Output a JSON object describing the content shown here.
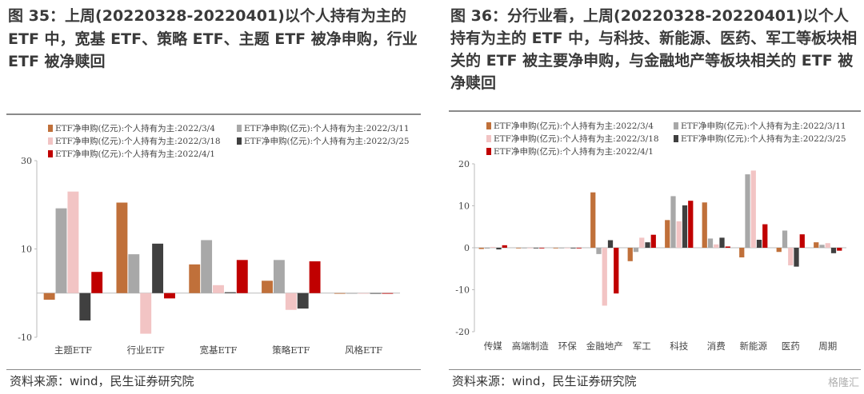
{
  "left": {
    "title": "图 35：上周(20220328-20220401)以个人持有为主的 ETF 中，宽基 ETF、策略 ETF、主题 ETF 被净申购，行业 ETF 被净赎回",
    "source": "资料来源：wind，民生证券研究院"
  },
  "right": {
    "title": "图 36：分行业看，上周(20220328-20220401)以个人持有为主的 ETF 中，与科技、新能源、医药、军工等板块相关的 ETF 被主要净申购，与金融地产等板块相关的 ETF 被净赎回",
    "source": "资料来源：wind，民生证券研究院"
  },
  "watermark": "格隆汇",
  "colors": {
    "2022/3/4": "#c0703a",
    "2022/3/11": "#a8a8a8",
    "2022/3/18": "#f2c4c4",
    "2022/3/25": "#404040",
    "2022/4/1": "#c00000"
  },
  "chart_data": [
    {
      "type": "bar",
      "categories": [
        "主题ETF",
        "行业ETF",
        "宽基ETF",
        "策略ETF",
        "风格ETF"
      ],
      "series": [
        {
          "name": "ETF净申购(亿元):个人持有为主:2022/3/4",
          "values": [
            -1.5,
            20.5,
            6.5,
            2.8,
            0.0
          ]
        },
        {
          "name": "ETF净申购(亿元):个人持有为主:2022/3/11",
          "values": [
            19.2,
            8.8,
            12.0,
            7.5,
            0.0
          ]
        },
        {
          "name": "ETF净申购(亿元):个人持有为主:2022/3/18",
          "values": [
            23.0,
            -9.2,
            1.8,
            -3.8,
            0.0
          ]
        },
        {
          "name": "ETF净申购(亿元):个人持有为主:2022/3/25",
          "values": [
            -6.2,
            11.2,
            0.2,
            -3.5,
            0.0
          ]
        },
        {
          "name": "ETF净申购(亿元):个人持有为主:2022/4/1",
          "values": [
            4.8,
            -1.2,
            7.5,
            7.2,
            0.0
          ]
        }
      ],
      "ylim": [
        -10,
        30
      ],
      "yticks": [
        -10,
        10,
        30
      ],
      "legend": "top"
    },
    {
      "type": "bar",
      "categories": [
        "传媒",
        "高端制造",
        "环保",
        "金融地产",
        "军工",
        "科技",
        "消费",
        "新能源",
        "医药",
        "周期"
      ],
      "series": [
        {
          "name": "ETF净申购(亿元):个人持有为主:2022/3/4",
          "values": [
            -0.3,
            -0.1,
            0.0,
            13.2,
            -3.2,
            6.6,
            10.8,
            -2.3,
            -1.0,
            1.3
          ]
        },
        {
          "name": "ETF净申购(亿元):个人持有为主:2022/3/11",
          "values": [
            -0.2,
            -0.1,
            0.0,
            -1.5,
            -1.0,
            12.3,
            2.2,
            17.5,
            4.1,
            0.7
          ]
        },
        {
          "name": "ETF净申购(亿元):个人持有为主:2022/3/18",
          "values": [
            0.2,
            0.0,
            0.0,
            -13.8,
            2.4,
            6.3,
            0.8,
            18.4,
            -4.2,
            1.1
          ]
        },
        {
          "name": "ETF净申购(亿元):个人持有为主:2022/3/25",
          "values": [
            -0.4,
            -0.1,
            0.0,
            1.8,
            1.3,
            10.1,
            2.4,
            1.9,
            -4.5,
            -1.3
          ]
        },
        {
          "name": "ETF净申购(亿元):个人持有为主:2022/4/1",
          "values": [
            0.6,
            -0.1,
            0.0,
            -10.9,
            3.1,
            11.2,
            0.3,
            5.6,
            3.2,
            -0.7
          ]
        }
      ],
      "ylim": [
        -20,
        20
      ],
      "yticks": [
        -20,
        -10,
        0,
        10,
        20
      ],
      "legend": "top"
    }
  ]
}
